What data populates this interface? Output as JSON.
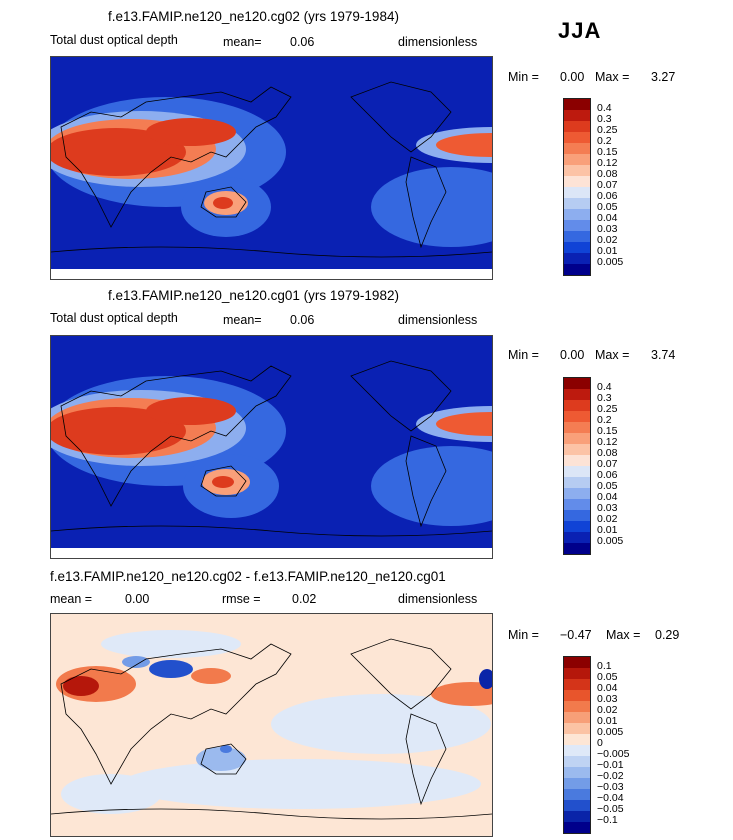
{
  "season": "JJA",
  "panels": [
    {
      "title": "f.e13.FAMIP.ne120_ne120.cg02 (yrs 1979-1984)",
      "variable": "Total dust optical depth",
      "stat_label": "mean=",
      "stat_value": "0.06",
      "units": "dimensionless",
      "min_label": "Min =",
      "min_value": "0.00",
      "max_label": "Max =",
      "max_value": "3.27",
      "levels": [
        "0.4",
        "0.3",
        "0.25",
        "0.2",
        "0.15",
        "0.12",
        "0.08",
        "0.07",
        "0.06",
        "0.05",
        "0.04",
        "0.03",
        "0.02",
        "0.01",
        "0.005"
      ],
      "colors": [
        "#8b0000",
        "#bd1a0e",
        "#dd3b1e",
        "#ee5a33",
        "#f47d53",
        "#f9a07a",
        "#fcc3a6",
        "#fde3d6",
        "#dce6f7",
        "#b6ccf2",
        "#8daeef",
        "#628cea",
        "#3568e0",
        "#1043d6",
        "#0a21b3",
        "#00008b"
      ]
    },
    {
      "title": "f.e13.FAMIP.ne120_ne120.cg01 (yrs 1979-1982)",
      "variable": "Total dust optical depth",
      "stat_label": "mean=",
      "stat_value": "0.06",
      "units": "dimensionless",
      "min_label": "Min =",
      "min_value": "0.00",
      "max_label": "Max =",
      "max_value": "3.74",
      "levels": [
        "0.4",
        "0.3",
        "0.25",
        "0.2",
        "0.15",
        "0.12",
        "0.08",
        "0.07",
        "0.06",
        "0.05",
        "0.04",
        "0.03",
        "0.02",
        "0.01",
        "0.005"
      ],
      "colors": [
        "#8b0000",
        "#bd1a0e",
        "#dd3b1e",
        "#ee5a33",
        "#f47d53",
        "#f9a07a",
        "#fcc3a6",
        "#fde3d6",
        "#dce6f7",
        "#b6ccf2",
        "#8daeef",
        "#628cea",
        "#3568e0",
        "#1043d6",
        "#0a21b3",
        "#00008b"
      ]
    },
    {
      "title": "f.e13.FAMIP.ne120_ne120.cg02 - f.e13.FAMIP.ne120_ne120.cg01",
      "mean_label": "mean =",
      "mean_value": "0.00",
      "rmse_label": "rmse =",
      "rmse_value": "0.02",
      "units": "dimensionless",
      "min_label": "Min =",
      "min_value": "−0.47",
      "max_label": "Max =",
      "max_value": "0.29",
      "levels": [
        "0.1",
        "0.05",
        "0.04",
        "0.03",
        "0.02",
        "0.01",
        "0.005",
        "0",
        "−0.005",
        "−0.01",
        "−0.02",
        "−0.03",
        "−0.04",
        "−0.05",
        "−0.1"
      ],
      "colors": [
        "#8b0000",
        "#b5170b",
        "#d43419",
        "#e8552c",
        "#f27a4c",
        "#f79f78",
        "#fbc3a4",
        "#fde6d5",
        "#dfe9f8",
        "#bfd3f3",
        "#9bbaee",
        "#739ce7",
        "#4a7ade",
        "#2250cc",
        "#0a24a8",
        "#00008b"
      ]
    }
  ]
}
